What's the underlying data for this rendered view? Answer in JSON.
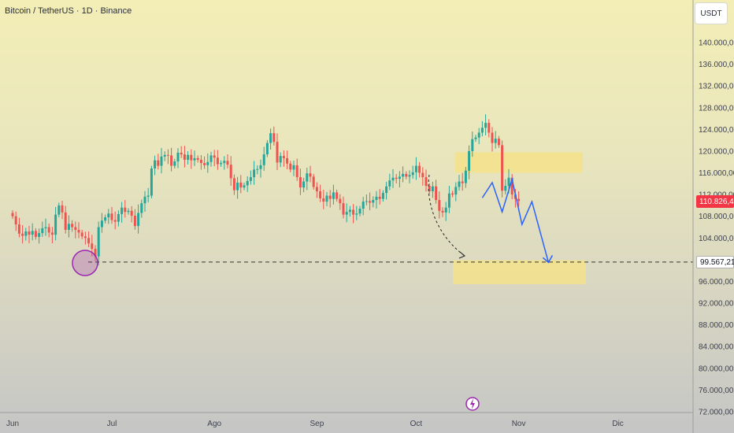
{
  "header": {
    "title": "Bitcoin / TetherUS · 1D · Binance"
  },
  "scale": {
    "currency": "USDT"
  },
  "price_tags": {
    "last_price": "110.826,43",
    "support_level": "99.567,21"
  },
  "chart_data": {
    "type": "candlestick",
    "x_axis": {
      "ticks": [
        {
          "label": "Jun",
          "day": 0
        },
        {
          "label": "Jul",
          "day": 30
        },
        {
          "label": "Ago",
          "day": 61
        },
        {
          "label": "Sep",
          "day": 92
        },
        {
          "label": "Oct",
          "day": 122
        },
        {
          "label": "Nov",
          "day": 153
        },
        {
          "label": "Dic",
          "day": 183
        }
      ]
    },
    "y_axis": {
      "range": [
        72000,
        144000
      ],
      "ticks": [
        {
          "label": "140.000,00",
          "value": 140000
        },
        {
          "label": "136.000,00",
          "value": 136000
        },
        {
          "label": "132.000,00",
          "value": 132000
        },
        {
          "label": "128.000,00",
          "value": 128000
        },
        {
          "label": "124.000,00",
          "value": 124000
        },
        {
          "label": "120.000,00",
          "value": 120000
        },
        {
          "label": "116.000,00",
          "value": 116000
        },
        {
          "label": "112.000,00",
          "value": 112000
        },
        {
          "label": "108.000,00",
          "value": 108000
        },
        {
          "label": "104.000,00",
          "value": 104000
        },
        {
          "label": "96.000,00",
          "value": 96000
        },
        {
          "label": "92.000,00",
          "value": 92000
        },
        {
          "label": "88.000,00",
          "value": 88000
        },
        {
          "label": "84.000,00",
          "value": 84000
        },
        {
          "label": "80.000,00",
          "value": 80000
        },
        {
          "label": "76.000,00",
          "value": 76000
        },
        {
          "label": "72.000,00",
          "value": 72000
        }
      ]
    },
    "closes": [
      108000,
      106500,
      104800,
      104400,
      105200,
      104600,
      105300,
      104200,
      104900,
      105800,
      106000,
      105000,
      104600,
      108300,
      110000,
      108700,
      105500,
      106600,
      106000,
      105500,
      105000,
      104300,
      104000,
      103000,
      102000,
      100600,
      106000,
      107200,
      107800,
      108500,
      107300,
      107000,
      108400,
      109600,
      108800,
      109000,
      108100,
      106200,
      108600,
      110400,
      111600,
      111800,
      116800,
      118300,
      117300,
      119000,
      119300,
      119200,
      117300,
      118100,
      119700,
      119400,
      118400,
      119300,
      118300,
      118700,
      118400,
      117800,
      117400,
      118000,
      119200,
      118800,
      117600,
      117800,
      118200,
      117500,
      115000,
      112800,
      114200,
      113300,
      113700,
      114500,
      115200,
      116600,
      116700,
      117400,
      119400,
      121500,
      123300,
      121700,
      117900,
      119100,
      118700,
      117700,
      116600,
      117400,
      115200,
      113300,
      114400,
      115900,
      115300,
      113400,
      112600,
      111300,
      110700,
      111800,
      111200,
      112400,
      111200,
      110400,
      108300,
      108800,
      109200,
      108300,
      108500,
      109400,
      110700,
      110800,
      110500,
      111000,
      111600,
      111200,
      112300,
      113500,
      114600,
      115100,
      114900,
      115300,
      115800,
      115300,
      115600,
      116100,
      117300,
      116000,
      115200,
      113600,
      112600,
      113500,
      111000,
      109000,
      108700,
      109600,
      112200,
      112000,
      113400,
      114400,
      114100,
      116400,
      120000,
      122200,
      122500,
      123400,
      124300,
      125200,
      123400,
      121500,
      122300,
      121100,
      112700,
      113600,
      115100,
      112000,
      111200,
      110800
    ],
    "annotations": {
      "support_level": 99567.21,
      "resistance_zone": [
        116000,
        119800
      ],
      "support_zone": [
        95500,
        99900
      ],
      "projection_path": [
        {
          "day": 142,
          "value": 111400
        },
        {
          "day": 145,
          "value": 114200
        },
        {
          "day": 148,
          "value": 108800
        },
        {
          "day": 151,
          "value": 114800
        },
        {
          "day": 154,
          "value": 106500
        },
        {
          "day": 157,
          "value": 110700
        },
        {
          "day": 162,
          "value": 99500
        }
      ]
    }
  },
  "footer": {
    "event_icon": "lightning-icon"
  },
  "colors": {
    "bull": "#26a69a",
    "bear": "#ef5350",
    "wick_bull": "#26a69a",
    "wick_bear": "#ef5350",
    "zone": "#f3e28b",
    "projection": "#2962ff",
    "circle": "#9c27b0",
    "axis_text": "#3d4150"
  }
}
